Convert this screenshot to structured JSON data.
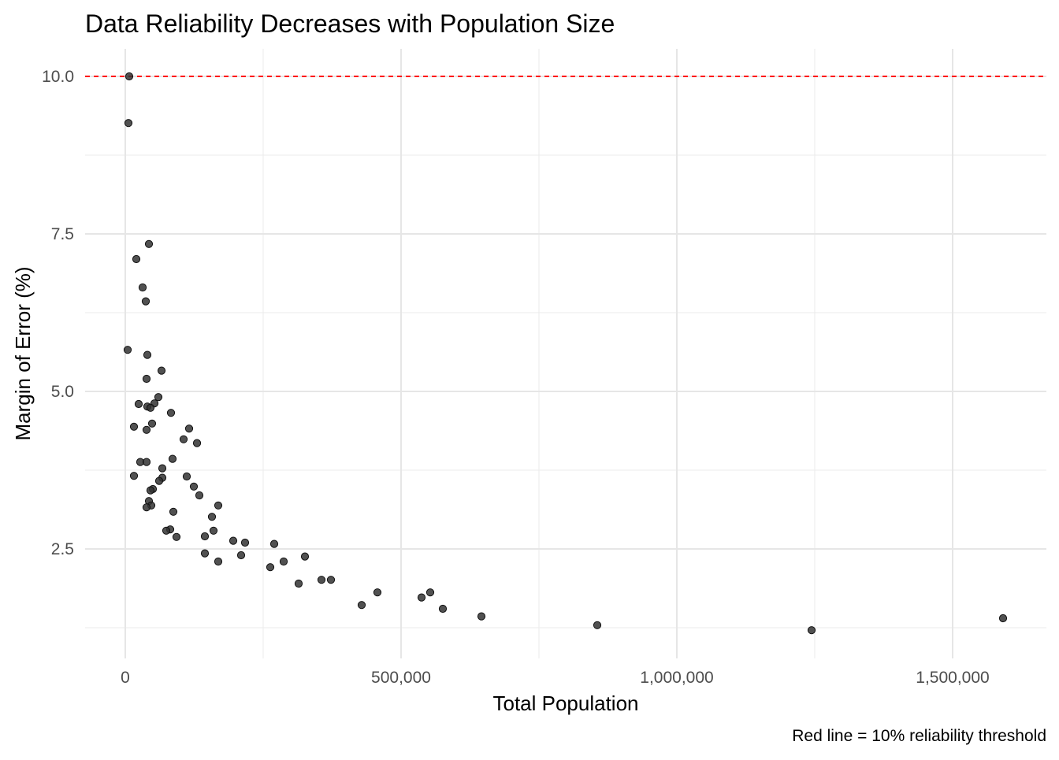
{
  "chart_data": {
    "type": "scatter",
    "title": "Data Reliability Decreases with Population Size",
    "xlabel": "Total Population",
    "ylabel": "Margin of Error (%)",
    "caption": "Red line = 10% reliability threshold",
    "xlim": [
      -75000,
      1670000
    ],
    "ylim": [
      0.5,
      10.45
    ],
    "x_ticks": [
      0,
      500000,
      1000000,
      1500000
    ],
    "x_tick_labels": [
      "0",
      "500,000",
      "1,000,000",
      "1,500,000"
    ],
    "y_ticks": [
      2.5,
      5.0,
      7.5,
      10.0
    ],
    "y_tick_labels": [
      "2.5",
      "5.0",
      "7.5",
      "10.0"
    ],
    "grid": true,
    "threshold": {
      "y": 10,
      "color": "#ff0000",
      "style": "dashed"
    },
    "point_color": "#333333",
    "points": [
      [
        7143,
        10.0
      ],
      [
        5714,
        9.26
      ],
      [
        42857,
        7.34
      ],
      [
        20000,
        7.1
      ],
      [
        31429,
        6.65
      ],
      [
        37143,
        6.43
      ],
      [
        4286,
        5.66
      ],
      [
        40000,
        5.58
      ],
      [
        65714,
        5.33
      ],
      [
        38571,
        5.2
      ],
      [
        60000,
        4.91
      ],
      [
        24286,
        4.8
      ],
      [
        52857,
        4.81
      ],
      [
        40000,
        4.76
      ],
      [
        45714,
        4.74
      ],
      [
        82857,
        4.66
      ],
      [
        48571,
        4.49
      ],
      [
        15714,
        4.44
      ],
      [
        38571,
        4.39
      ],
      [
        115714,
        4.41
      ],
      [
        105714,
        4.24
      ],
      [
        130000,
        4.18
      ],
      [
        85714,
        3.93
      ],
      [
        27143,
        3.88
      ],
      [
        38571,
        3.88
      ],
      [
        67143,
        3.78
      ],
      [
        15714,
        3.66
      ],
      [
        111429,
        3.65
      ],
      [
        67143,
        3.63
      ],
      [
        61429,
        3.58
      ],
      [
        124286,
        3.49
      ],
      [
        50000,
        3.45
      ],
      [
        45714,
        3.43
      ],
      [
        134286,
        3.35
      ],
      [
        42857,
        3.26
      ],
      [
        168571,
        3.19
      ],
      [
        47143,
        3.19
      ],
      [
        38571,
        3.16
      ],
      [
        87143,
        3.09
      ],
      [
        157143,
        3.01
      ],
      [
        160000,
        2.79
      ],
      [
        81429,
        2.81
      ],
      [
        74286,
        2.79
      ],
      [
        144286,
        2.7
      ],
      [
        92857,
        2.69
      ],
      [
        195714,
        2.63
      ],
      [
        217143,
        2.6
      ],
      [
        270000,
        2.58
      ],
      [
        144286,
        2.43
      ],
      [
        210000,
        2.4
      ],
      [
        325714,
        2.38
      ],
      [
        168571,
        2.3
      ],
      [
        287143,
        2.3
      ],
      [
        262857,
        2.21
      ],
      [
        355714,
        2.01
      ],
      [
        372857,
        2.01
      ],
      [
        314286,
        1.95
      ],
      [
        457143,
        1.81
      ],
      [
        552857,
        1.81
      ],
      [
        537143,
        1.73
      ],
      [
        428571,
        1.61
      ],
      [
        575714,
        1.55
      ],
      [
        645714,
        1.43
      ],
      [
        855714,
        1.29
      ],
      [
        1244286,
        1.21
      ],
      [
        1591429,
        1.4
      ]
    ]
  }
}
